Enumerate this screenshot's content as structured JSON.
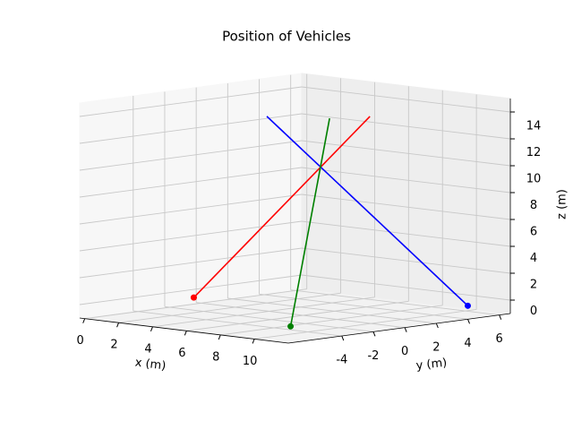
{
  "chart_data": {
    "type": "line3d",
    "title": "Position of Vehicles",
    "xlabel": "x (m)",
    "ylabel": "y (m)",
    "zlabel": "z (m)",
    "xlim": [
      -0.3,
      12
    ],
    "ylim": [
      -7.4,
      6.7
    ],
    "zlim": [
      -1,
      15
    ],
    "xticks": [
      0,
      2,
      4,
      6,
      8,
      10
    ],
    "yticks": [
      -4,
      -2,
      0,
      2,
      4,
      6
    ],
    "zticks": [
      0,
      2,
      4,
      6,
      8,
      10,
      12,
      14
    ],
    "grid": true,
    "series": [
      {
        "color": "#ff0000",
        "x": [
          1.6,
          11.8
        ],
        "y": [
          -2.2,
          -2.0
        ],
        "z": [
          0,
          15
        ]
      },
      {
        "color": "#0000ff",
        "x": [
          12.0,
          8.6
        ],
        "y": [
          4.0,
          -5.1
        ],
        "z": [
          0,
          15
        ]
      },
      {
        "color": "#008000",
        "x": [
          11.3,
          11.0
        ],
        "y": [
          -6.5,
          -3.7
        ],
        "z": [
          0,
          15
        ]
      }
    ]
  }
}
